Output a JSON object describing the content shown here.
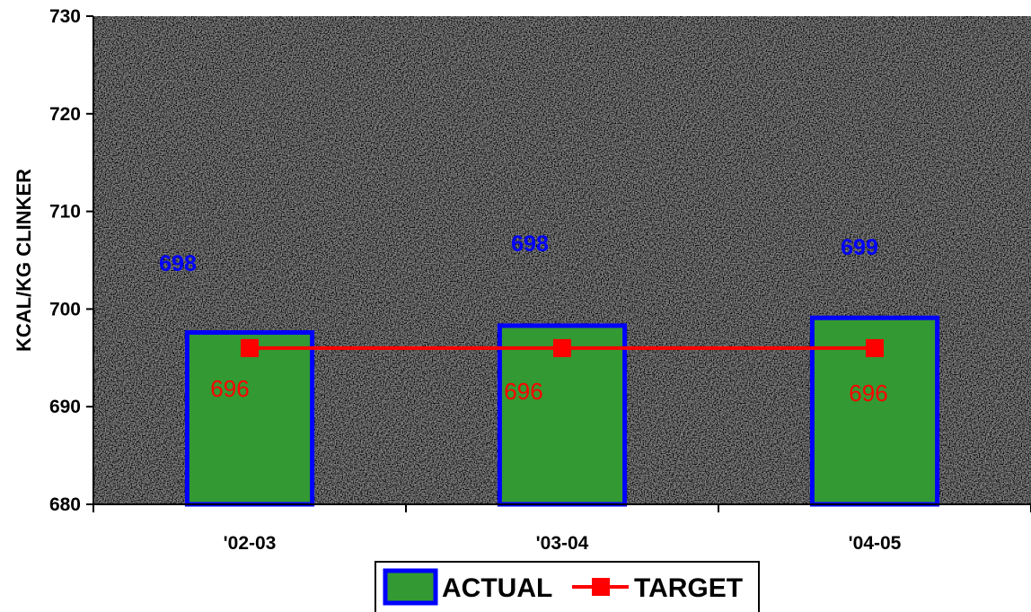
{
  "chart_data": {
    "type": "bar",
    "categories": [
      "'02-03",
      "'03-04",
      "'04-05"
    ],
    "series": [
      {
        "name": "ACTUAL",
        "kind": "bar",
        "values": [
          697.6,
          698.3,
          699.1
        ],
        "labels": [
          "698",
          "698",
          "699"
        ]
      },
      {
        "name": "TARGET",
        "kind": "line",
        "values": [
          696,
          696,
          696
        ],
        "labels": [
          "696",
          "696",
          "696"
        ]
      }
    ],
    "title": "",
    "xlabel": "",
    "ylabel": "KCAL/KG CLINKER",
    "ylim": [
      680,
      730
    ],
    "yticks": [
      680,
      690,
      700,
      710,
      720,
      730
    ],
    "grid": false,
    "legend": "bottom",
    "colors": {
      "bar_fill": "#339933",
      "bar_border": "#0000ff",
      "target_line": "#ff0000",
      "actual_label": "#0000ff",
      "target_label": "#ff0000",
      "plot_background": "#dcdcdc"
    }
  }
}
